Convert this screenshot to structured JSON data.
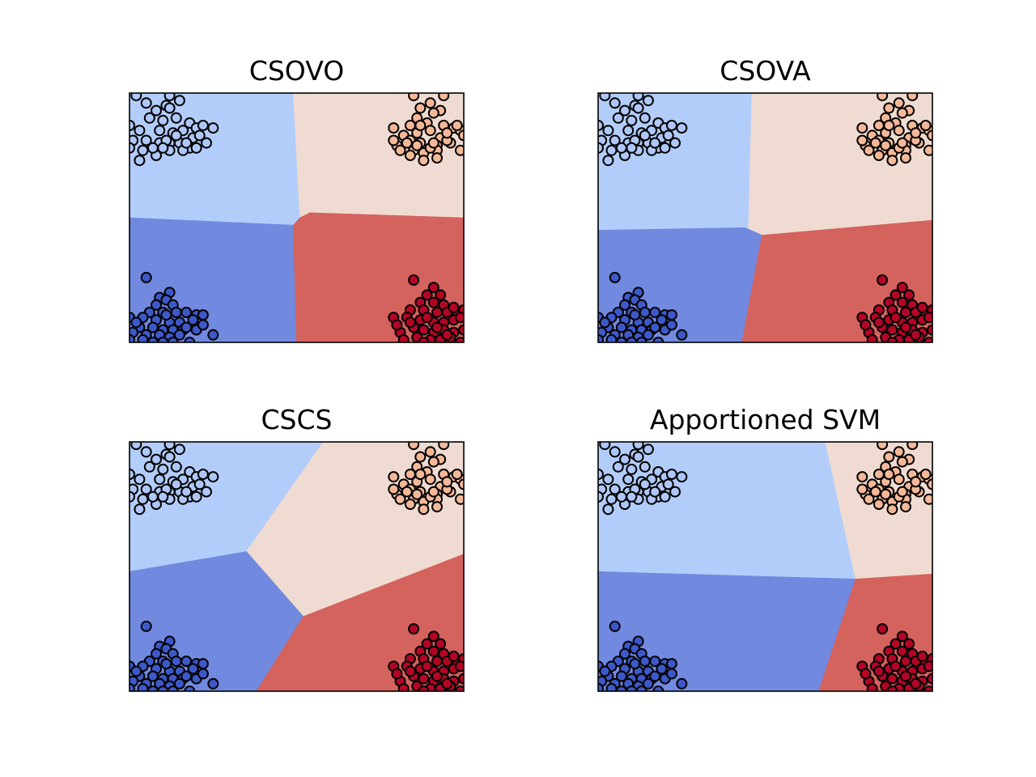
{
  "colors": {
    "class_light_blue_region": "#b3cdfb",
    "class_dark_blue_region": "#7189df",
    "class_peach_region": "#efdbd1",
    "class_red_region": "#d4625d",
    "class_light_blue_point": "#aec7f8",
    "class_dark_blue_point": "#3d58c8",
    "class_peach_point": "#f4b898",
    "class_red_point": "#b40426",
    "marker_edge": "#000000"
  },
  "chart_data": [
    {
      "type": "scatter",
      "title": "CSOVO",
      "ticks_visible": false,
      "grid": false,
      "xlim": [
        0,
        1
      ],
      "ylim": [
        0,
        1
      ],
      "regions": [
        {
          "class": "light_blue",
          "polygon": [
            [
              0,
              1
            ],
            [
              0.49,
              1
            ],
            [
              0.51,
              0.5
            ],
            [
              0.49,
              0.47
            ],
            [
              0,
              0.5
            ]
          ]
        },
        {
          "class": "peach",
          "polygon": [
            [
              0.49,
              1
            ],
            [
              1,
              1
            ],
            [
              1,
              0.5
            ],
            [
              0.54,
              0.52
            ],
            [
              0.51,
              0.5
            ]
          ]
        },
        {
          "class": "dark_blue",
          "polygon": [
            [
              0,
              0.5
            ],
            [
              0.49,
              0.47
            ],
            [
              0.5,
              0
            ],
            [
              0,
              0
            ]
          ]
        },
        {
          "class": "red",
          "polygon": [
            [
              0.49,
              0.47
            ],
            [
              0.51,
              0.5
            ],
            [
              0.54,
              0.52
            ],
            [
              1,
              0.5
            ],
            [
              1,
              0
            ],
            [
              0.5,
              0
            ]
          ]
        }
      ]
    },
    {
      "type": "scatter",
      "title": "CSOVA",
      "ticks_visible": false,
      "grid": false,
      "xlim": [
        0,
        1
      ],
      "ylim": [
        0,
        1
      ],
      "regions": [
        {
          "class": "light_blue",
          "polygon": [
            [
              0,
              1
            ],
            [
              0.46,
              1
            ],
            [
              0.45,
              0.45
            ],
            [
              0.44,
              0.46
            ],
            [
              0,
              0.45
            ]
          ]
        },
        {
          "class": "peach",
          "polygon": [
            [
              0.46,
              1
            ],
            [
              1,
              1
            ],
            [
              1,
              0.49
            ],
            [
              0.49,
              0.43
            ],
            [
              0.45,
              0.45
            ]
          ]
        },
        {
          "class": "dark_blue",
          "polygon": [
            [
              0,
              0.45
            ],
            [
              0.44,
              0.46
            ],
            [
              0.49,
              0.43
            ],
            [
              0.43,
              0
            ],
            [
              0,
              0
            ]
          ]
        },
        {
          "class": "red",
          "polygon": [
            [
              0.49,
              0.43
            ],
            [
              1,
              0.49
            ],
            [
              1,
              0
            ],
            [
              0.43,
              0
            ]
          ]
        }
      ]
    },
    {
      "type": "scatter",
      "title": "CSCS",
      "ticks_visible": false,
      "grid": false,
      "xlim": [
        0,
        1
      ],
      "ylim": [
        0,
        1
      ],
      "regions": [
        {
          "class": "light_blue",
          "polygon": [
            [
              0,
              1
            ],
            [
              0.58,
              1
            ],
            [
              0.35,
              0.56
            ],
            [
              0,
              0.48
            ]
          ]
        },
        {
          "class": "peach",
          "polygon": [
            [
              0.58,
              1
            ],
            [
              1,
              1
            ],
            [
              1,
              0.55
            ],
            [
              0.52,
              0.3
            ],
            [
              0.35,
              0.56
            ]
          ]
        },
        {
          "class": "dark_blue",
          "polygon": [
            [
              0,
              0.48
            ],
            [
              0.35,
              0.56
            ],
            [
              0.52,
              0.3
            ],
            [
              0.38,
              0
            ],
            [
              0,
              0
            ]
          ]
        },
        {
          "class": "red",
          "polygon": [
            [
              0.52,
              0.3
            ],
            [
              1,
              0.55
            ],
            [
              1,
              0
            ],
            [
              0.38,
              0
            ]
          ]
        }
      ]
    },
    {
      "type": "scatter",
      "title": "Apportioned SVM",
      "ticks_visible": false,
      "grid": false,
      "xlim": [
        0,
        1
      ],
      "ylim": [
        0,
        1
      ],
      "regions": [
        {
          "class": "light_blue",
          "polygon": [
            [
              0,
              1
            ],
            [
              0.68,
              1
            ],
            [
              0.77,
              0.45
            ],
            [
              0,
              0.48
            ]
          ]
        },
        {
          "class": "peach",
          "polygon": [
            [
              0.68,
              1
            ],
            [
              1,
              1
            ],
            [
              1,
              0.47
            ],
            [
              0.77,
              0.45
            ]
          ]
        },
        {
          "class": "dark_blue",
          "polygon": [
            [
              0,
              0.48
            ],
            [
              0.77,
              0.45
            ],
            [
              0.66,
              0
            ],
            [
              0,
              0
            ]
          ]
        },
        {
          "class": "red",
          "polygon": [
            [
              0.77,
              0.45
            ],
            [
              1,
              0.47
            ],
            [
              1,
              0
            ],
            [
              0.66,
              0
            ]
          ]
        }
      ]
    }
  ],
  "points": {
    "light_blue": [
      [
        0.02,
        0.99
      ],
      [
        0.12,
        0.99
      ],
      [
        0.05,
        0.96
      ],
      [
        0.11,
        0.95
      ],
      [
        0.08,
        0.93
      ],
      [
        0.12,
        0.94
      ],
      [
        0.15,
        0.97
      ],
      [
        0.06,
        0.9
      ],
      [
        0.1,
        0.89
      ],
      [
        0.14,
        0.9
      ],
      [
        0.18,
        0.88
      ],
      [
        0.2,
        0.86
      ],
      [
        0.0,
        0.87
      ],
      [
        0.03,
        0.85
      ],
      [
        0.09,
        0.85
      ],
      [
        0.13,
        0.84
      ],
      [
        0.16,
        0.85
      ],
      [
        0.19,
        0.82
      ],
      [
        0.22,
        0.87
      ],
      [
        0.01,
        0.81
      ],
      [
        0.05,
        0.81
      ],
      [
        0.09,
        0.8
      ],
      [
        0.12,
        0.8
      ],
      [
        0.15,
        0.8
      ],
      [
        0.18,
        0.78
      ],
      [
        0.21,
        0.83
      ],
      [
        0.04,
        0.77
      ],
      [
        0.08,
        0.75
      ],
      [
        0.12,
        0.77
      ],
      [
        0.16,
        0.77
      ],
      [
        0.0,
        0.78
      ],
      [
        0.07,
        0.78
      ],
      [
        0.11,
        0.81
      ],
      [
        0.2,
        0.78
      ],
      [
        0.03,
        0.73
      ],
      [
        0.25,
        0.86
      ],
      [
        0.23,
        0.8
      ],
      [
        0.14,
        0.83
      ],
      [
        0.17,
        0.8
      ],
      [
        0.1,
        0.78
      ]
    ],
    "peach": [
      [
        0.85,
        0.99
      ],
      [
        0.94,
        0.99
      ],
      [
        0.9,
        0.96
      ],
      [
        0.93,
        0.93
      ],
      [
        0.87,
        0.94
      ],
      [
        0.91,
        0.92
      ],
      [
        0.86,
        0.9
      ],
      [
        0.84,
        0.87
      ],
      [
        0.89,
        0.88
      ],
      [
        0.94,
        0.87
      ],
      [
        0.97,
        0.86
      ],
      [
        0.99,
        0.85
      ],
      [
        0.79,
        0.86
      ],
      [
        0.82,
        0.83
      ],
      [
        0.86,
        0.84
      ],
      [
        0.9,
        0.85
      ],
      [
        0.93,
        0.82
      ],
      [
        0.96,
        0.8
      ],
      [
        1.0,
        0.83
      ],
      [
        0.8,
        0.79
      ],
      [
        0.84,
        0.81
      ],
      [
        0.87,
        0.8
      ],
      [
        0.92,
        0.79
      ],
      [
        0.95,
        0.81
      ],
      [
        0.81,
        0.77
      ],
      [
        0.85,
        0.77
      ],
      [
        0.88,
        0.76
      ],
      [
        0.92,
        0.77
      ],
      [
        0.84,
        0.75
      ],
      [
        0.88,
        0.73
      ],
      [
        0.99,
        0.77
      ],
      [
        0.83,
        0.8
      ],
      [
        0.9,
        0.78
      ],
      [
        0.98,
        0.87
      ],
      [
        0.95,
        0.84
      ],
      [
        0.91,
        0.8
      ],
      [
        0.86,
        0.79
      ],
      [
        0.79,
        0.81
      ],
      [
        0.87,
        0.87
      ],
      [
        0.92,
        0.74
      ]
    ],
    "dark_blue": [
      [
        0.05,
        0.26
      ],
      [
        0.12,
        0.2
      ],
      [
        0.09,
        0.18
      ],
      [
        0.11,
        0.17
      ],
      [
        0.08,
        0.15
      ],
      [
        0.13,
        0.15
      ],
      [
        0.06,
        0.12
      ],
      [
        0.1,
        0.12
      ],
      [
        0.14,
        0.12
      ],
      [
        0.17,
        0.12
      ],
      [
        0.2,
        0.11
      ],
      [
        0.22,
        0.11
      ],
      [
        0.0,
        0.1
      ],
      [
        0.04,
        0.1
      ],
      [
        0.08,
        0.09
      ],
      [
        0.12,
        0.08
      ],
      [
        0.15,
        0.08
      ],
      [
        0.19,
        0.09
      ],
      [
        0.03,
        0.06
      ],
      [
        0.07,
        0.06
      ],
      [
        0.1,
        0.05
      ],
      [
        0.13,
        0.05
      ],
      [
        0.16,
        0.05
      ],
      [
        0.2,
        0.05
      ],
      [
        0.01,
        0.04
      ],
      [
        0.05,
        0.03
      ],
      [
        0.09,
        0.03
      ],
      [
        0.12,
        0.02
      ],
      [
        0.15,
        0.03
      ],
      [
        0.0,
        0.01
      ],
      [
        0.04,
        0.01
      ],
      [
        0.1,
        0.0
      ],
      [
        0.13,
        0.0
      ],
      [
        0.18,
        0.0
      ],
      [
        0.22,
        0.07
      ],
      [
        0.25,
        0.03
      ],
      [
        0.07,
        0.0
      ],
      [
        0.11,
        0.11
      ],
      [
        0.17,
        0.06
      ],
      [
        0.02,
        0.08
      ]
    ],
    "red": [
      [
        0.85,
        0.25
      ],
      [
        0.91,
        0.22
      ],
      [
        0.89,
        0.19
      ],
      [
        0.93,
        0.19
      ],
      [
        0.87,
        0.16
      ],
      [
        0.91,
        0.16
      ],
      [
        0.94,
        0.15
      ],
      [
        0.84,
        0.13
      ],
      [
        0.88,
        0.13
      ],
      [
        0.92,
        0.12
      ],
      [
        0.95,
        0.12
      ],
      [
        0.98,
        0.12
      ],
      [
        1.0,
        0.13
      ],
      [
        0.79,
        0.1
      ],
      [
        0.83,
        0.1
      ],
      [
        0.87,
        0.09
      ],
      [
        0.91,
        0.08
      ],
      [
        0.94,
        0.08
      ],
      [
        0.97,
        0.09
      ],
      [
        0.99,
        0.1
      ],
      [
        0.81,
        0.04
      ],
      [
        0.85,
        0.06
      ],
      [
        0.88,
        0.05
      ],
      [
        0.91,
        0.04
      ],
      [
        0.94,
        0.05
      ],
      [
        0.97,
        0.04
      ],
      [
        1.0,
        0.05
      ],
      [
        0.82,
        0.01
      ],
      [
        0.86,
        0.02
      ],
      [
        0.9,
        0.01
      ],
      [
        0.93,
        0.01
      ],
      [
        0.96,
        0.02
      ],
      [
        0.99,
        0.0
      ],
      [
        0.88,
        0.0
      ],
      [
        0.84,
        0.08
      ],
      [
        0.95,
        0.03
      ],
      [
        0.92,
        0.06
      ],
      [
        0.89,
        0.1
      ],
      [
        0.97,
        0.14
      ],
      [
        0.8,
        0.07
      ]
    ]
  }
}
